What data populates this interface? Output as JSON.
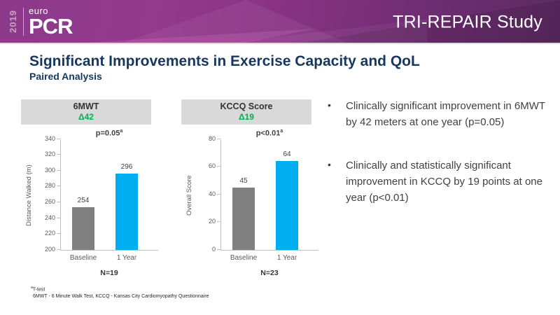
{
  "header": {
    "year": "2019",
    "logo_euro": "euro",
    "logo_pcr": "PCR",
    "study_title": "TRI-REPAIR Study"
  },
  "title": {
    "main": "Significant Improvements in Exercise Capacity and QoL",
    "sub": "Paired Analysis"
  },
  "bullets": [
    {
      "marker": "•",
      "text": "Clinically significant improvement in 6MWT by 42 meters at one year (p=0.05)"
    },
    {
      "marker": "•",
      "text": "Clinically and statistically significant improvement in KCCQ by 19 points at one year (p<0.01)"
    }
  ],
  "footnote": {
    "line1_sup": "a",
    "line1_text": "T-test",
    "line2": "6MWT - 6 Minute Walk Test, KCCQ - Kansas City Cardiomyopathy Questionnaire"
  },
  "colors": {
    "header_purple_light": "#93398E",
    "header_purple_dark": "#5C2B62",
    "title_navy": "#17375E",
    "delta_green": "#00B050",
    "bar_gray": "#808080",
    "bar_blue": "#00AEEF",
    "panel_gray": "#D9D9D9",
    "axis_gray": "#BFBFBF"
  },
  "chart_data": [
    {
      "type": "bar",
      "title": "6MWT",
      "delta": "Δ42",
      "p_label": "p=0.05",
      "p_sup": "a",
      "categories": [
        "Baseline",
        "1 Year"
      ],
      "values": [
        254,
        296
      ],
      "bar_colors": [
        "#808080",
        "#00AEEF"
      ],
      "ylabel": "Distance Walked (m)",
      "ylim": [
        200,
        340
      ],
      "ytick_step": 20,
      "n_label": "N=19",
      "grid": false,
      "legend": "none"
    },
    {
      "type": "bar",
      "title": "KCCQ Score",
      "delta": "Δ19",
      "p_label": "p<0.01",
      "p_sup": "a",
      "categories": [
        "Baseline",
        "1 Year"
      ],
      "values": [
        45,
        64
      ],
      "bar_colors": [
        "#808080",
        "#00AEEF"
      ],
      "ylabel": "Overall Score",
      "ylim": [
        0,
        80
      ],
      "ytick_step": 20,
      "n_label": "N=23",
      "grid": false,
      "legend": "none"
    }
  ]
}
